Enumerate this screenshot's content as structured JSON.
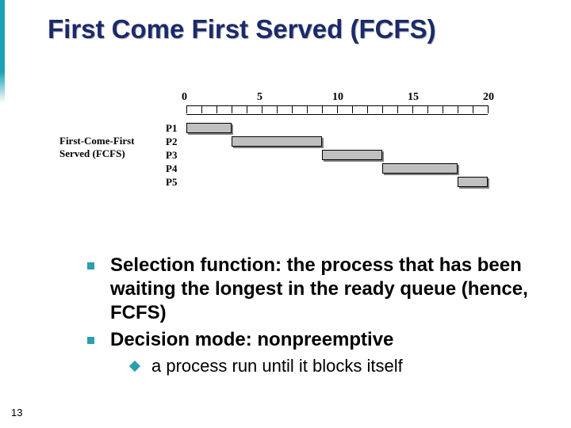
{
  "title": "First Come First Served (FCFS)",
  "pageNumber": "13",
  "chart": {
    "type": "gantt",
    "leftLabel1": "First-Come-First",
    "leftLabel2": "Served (FCFS)",
    "axis": {
      "min": 0,
      "max": 20,
      "majorStep": 5,
      "unitPx": 19,
      "originPx": 0,
      "ticks": [
        "0",
        "5",
        "10",
        "15",
        "20"
      ]
    },
    "rows": [
      {
        "label": "P1",
        "start": 0,
        "end": 3
      },
      {
        "label": "P2",
        "start": 3,
        "end": 9
      },
      {
        "label": "P3",
        "start": 9,
        "end": 13
      },
      {
        "label": "P4",
        "start": 13,
        "end": 18
      },
      {
        "label": "P5",
        "start": 18,
        "end": 20
      }
    ],
    "rowHeightPx": 17,
    "rowsTopPx": 40,
    "barColor": "#c0c0c0",
    "barBorder": "#000000",
    "barShadow": "#808080",
    "labelOffsetPx": -26
  },
  "bullets": [
    "Selection function: the process that has been waiting the longest in the ready queue (hence, FCFS)",
    "Decision mode: nonpreemptive"
  ],
  "subBullet": "a process run until it blocks itself",
  "colors": {
    "accent": "#2a9fb0",
    "titleColor": "#1a2a6c"
  }
}
